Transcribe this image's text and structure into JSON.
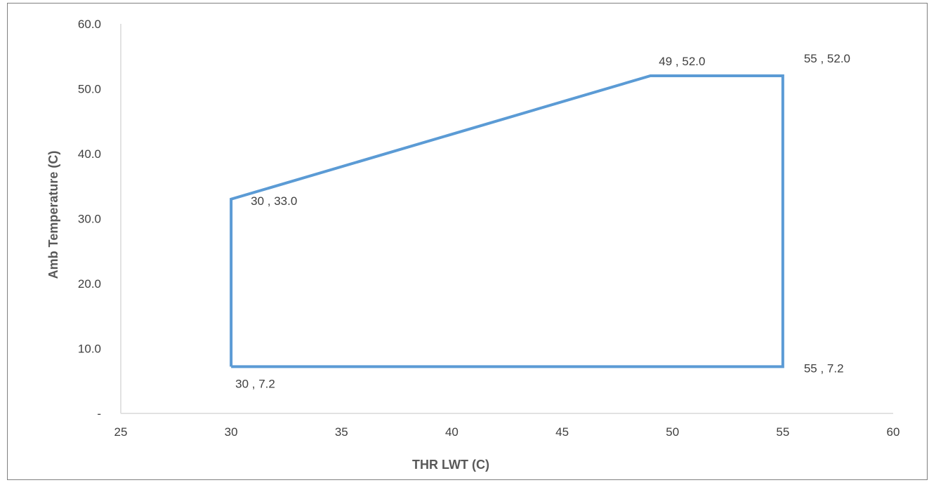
{
  "chart_data": {
    "type": "line",
    "title": "",
    "xlabel": "THR LWT (C)",
    "ylabel": "Amb Temperature (C)",
    "xlim": [
      25,
      60
    ],
    "ylim": [
      0,
      60
    ],
    "x_ticks": [
      25,
      30,
      35,
      40,
      45,
      50,
      55,
      60
    ],
    "x_tick_labels": [
      "25",
      "30",
      "35",
      "40",
      "45",
      "50",
      "55",
      "60"
    ],
    "y_ticks": [
      0,
      10,
      20,
      30,
      40,
      50,
      60
    ],
    "y_tick_labels": [
      "-",
      "10.0",
      "20.0",
      "30.0",
      "40.0",
      "50.0",
      "60.0"
    ],
    "grid": false,
    "legend": "none",
    "series": [
      {
        "color": "#5b9bd5",
        "points": [
          {
            "x": 30,
            "y": 7.2,
            "label": "30 ,  7.2"
          },
          {
            "x": 30,
            "y": 33.0,
            "label": "30 ,  33.0"
          },
          {
            "x": 49,
            "y": 52.0,
            "label": "49 ,  52.0"
          },
          {
            "x": 55,
            "y": 52.0,
            "label": "55 ,  52.0"
          },
          {
            "x": 55,
            "y": 7.2,
            "label": "55 ,  7.2"
          },
          {
            "x": 30,
            "y": 7.2
          }
        ]
      }
    ]
  }
}
